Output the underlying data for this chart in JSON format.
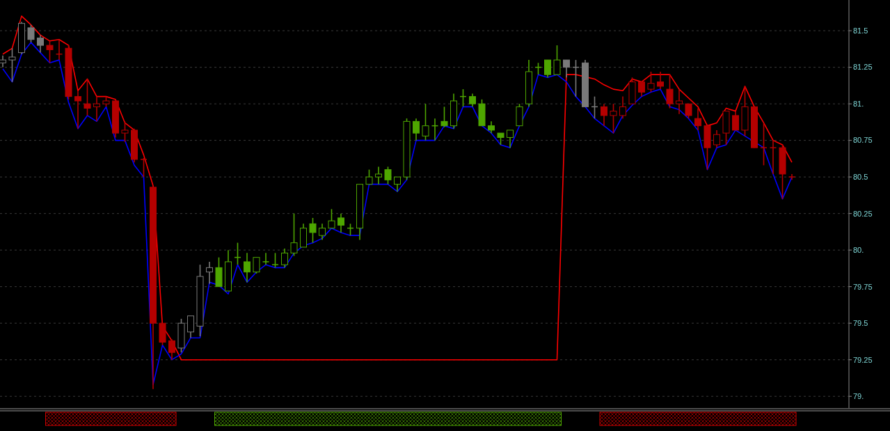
{
  "chart_data": {
    "type": "candlestick",
    "categories": [
      null,
      null,
      null,
      null,
      null,
      null,
      null,
      null,
      null,
      null,
      null,
      null,
      null,
      null,
      null,
      null,
      null,
      null,
      null,
      null,
      null,
      null,
      null,
      null,
      null,
      null,
      null,
      null,
      null,
      null,
      null,
      null,
      null,
      null,
      null,
      null,
      null,
      null,
      null,
      null,
      null,
      null,
      null,
      null,
      null,
      null,
      null,
      null,
      null,
      null,
      null,
      null,
      null,
      null,
      null,
      null,
      null,
      null,
      null,
      null,
      null,
      null,
      null,
      null,
      null,
      null,
      null,
      null,
      null,
      null,
      null,
      null,
      null,
      null,
      null,
      null,
      null,
      null,
      null,
      null,
      null,
      null,
      null,
      null,
      null
    ],
    "ohlc": [
      [
        81.28,
        81.33,
        81.25,
        81.3
      ],
      [
        81.3,
        81.38,
        81.15,
        81.32
      ],
      [
        81.35,
        81.56,
        81.34,
        81.55
      ],
      [
        81.52,
        81.54,
        81.42,
        81.44
      ],
      [
        81.45,
        81.47,
        81.35,
        81.4
      ],
      [
        81.4,
        81.43,
        81.28,
        81.37
      ],
      [
        81.34,
        81.44,
        81.3,
        81.34
      ],
      [
        81.38,
        81.4,
        81.03,
        81.05
      ],
      [
        81.05,
        81.09,
        80.83,
        81.02
      ],
      [
        81.0,
        81.17,
        80.92,
        80.97
      ],
      [
        80.98,
        81.05,
        80.88,
        81.0
      ],
      [
        81.0,
        81.05,
        80.98,
        81.02
      ],
      [
        81.02,
        81.03,
        80.77,
        80.8
      ],
      [
        80.8,
        80.88,
        80.74,
        80.82
      ],
      [
        80.82,
        80.83,
        80.6,
        80.62
      ],
      [
        80.62,
        80.63,
        80.5,
        80.62
      ],
      [
        80.43,
        80.43,
        79.05,
        79.5
      ],
      [
        79.5,
        79.5,
        79.35,
        79.37
      ],
      [
        79.38,
        79.39,
        79.25,
        79.3
      ],
      [
        79.33,
        79.53,
        79.3,
        79.5
      ],
      [
        79.44,
        79.55,
        79.4,
        79.55
      ],
      [
        79.48,
        79.9,
        79.41,
        79.82
      ],
      [
        79.85,
        79.92,
        79.77,
        79.88
      ],
      [
        79.88,
        79.95,
        79.75,
        79.75
      ],
      [
        79.72,
        80.0,
        79.72,
        79.92
      ],
      [
        79.95,
        80.05,
        79.9,
        79.95
      ],
      [
        79.92,
        79.98,
        79.78,
        79.85
      ],
      [
        79.85,
        79.95,
        79.84,
        79.95
      ],
      [
        79.92,
        79.98,
        79.9,
        79.92
      ],
      [
        79.9,
        79.98,
        79.88,
        79.9
      ],
      [
        79.9,
        80.01,
        79.88,
        79.98
      ],
      [
        79.98,
        80.25,
        79.96,
        80.05
      ],
      [
        80.02,
        80.18,
        80.02,
        80.15
      ],
      [
        80.18,
        80.22,
        80.05,
        80.12
      ],
      [
        80.1,
        80.18,
        80.07,
        80.15
      ],
      [
        80.15,
        80.28,
        80.15,
        80.2
      ],
      [
        80.22,
        80.25,
        80.12,
        80.17
      ],
      [
        80.15,
        80.18,
        80.1,
        80.15
      ],
      [
        80.15,
        80.45,
        80.07,
        80.45
      ],
      [
        80.45,
        80.55,
        80.45,
        80.5
      ],
      [
        80.5,
        80.57,
        80.45,
        80.52
      ],
      [
        80.55,
        80.57,
        80.45,
        80.48
      ],
      [
        80.45,
        80.5,
        80.4,
        80.5
      ],
      [
        80.5,
        80.9,
        80.48,
        80.88
      ],
      [
        80.88,
        80.9,
        80.75,
        80.8
      ],
      [
        80.78,
        81.0,
        80.75,
        80.85
      ],
      [
        80.85,
        80.9,
        80.75,
        80.85
      ],
      [
        80.88,
        80.98,
        80.84,
        80.85
      ],
      [
        80.85,
        81.07,
        80.83,
        81.02
      ],
      [
        81.05,
        81.1,
        80.98,
        81.05
      ],
      [
        81.05,
        81.07,
        80.98,
        81.0
      ],
      [
        81.0,
        81.03,
        80.85,
        80.85
      ],
      [
        80.85,
        80.88,
        80.8,
        80.82
      ],
      [
        80.8,
        80.8,
        80.72,
        80.77
      ],
      [
        80.77,
        80.82,
        80.7,
        80.82
      ],
      [
        80.85,
        81.0,
        80.85,
        80.98
      ],
      [
        81.0,
        81.3,
        80.98,
        81.22
      ],
      [
        81.25,
        81.28,
        81.2,
        81.25
      ],
      [
        81.3,
        81.3,
        81.18,
        81.2
      ],
      [
        81.2,
        81.4,
        81.2,
        81.3
      ],
      [
        81.3,
        81.3,
        81.18,
        81.25
      ],
      [
        81.25,
        81.3,
        81.05,
        81.25
      ],
      [
        81.28,
        81.3,
        80.98,
        80.98
      ],
      [
        80.98,
        81.05,
        80.9,
        80.98
      ],
      [
        80.98,
        81.0,
        80.85,
        80.92
      ],
      [
        80.92,
        81.0,
        80.8,
        80.95
      ],
      [
        80.92,
        81.05,
        80.9,
        80.98
      ],
      [
        81.0,
        81.18,
        81.0,
        81.15
      ],
      [
        81.15,
        81.15,
        81.05,
        81.08
      ],
      [
        81.1,
        81.22,
        81.08,
        81.14
      ],
      [
        81.15,
        81.22,
        81.1,
        81.12
      ],
      [
        81.1,
        81.2,
        80.97,
        81.0
      ],
      [
        81.0,
        81.1,
        80.93,
        81.02
      ],
      [
        81.0,
        81.0,
        80.9,
        80.92
      ],
      [
        80.9,
        80.97,
        80.82,
        80.85
      ],
      [
        80.85,
        80.85,
        80.55,
        80.7
      ],
      [
        80.72,
        80.82,
        80.7,
        80.79
      ],
      [
        80.8,
        80.95,
        80.72,
        80.95
      ],
      [
        80.92,
        80.95,
        80.82,
        80.82
      ],
      [
        80.82,
        81.12,
        80.78,
        80.98
      ],
      [
        80.98,
        80.98,
        80.7,
        80.7
      ],
      [
        80.7,
        80.87,
        80.58,
        80.7
      ],
      [
        80.7,
        80.75,
        80.52,
        80.7
      ],
      [
        80.7,
        80.72,
        80.35,
        80.52
      ],
      [
        80.5,
        80.52,
        80.48,
        80.5
      ]
    ],
    "colors": [
      "#7a7a7a",
      "#7a7a7a",
      "#7a7a7a",
      "#7a7a7a",
      "#7a7a7a",
      "#b40000",
      "#b40000",
      "#b40000",
      "#b40000",
      "#b40000",
      "#b40000",
      "#b40000",
      "#b40000",
      "#b40000",
      "#b40000",
      "#b40000",
      "#b40000",
      "#b40000",
      "#b40000",
      "#7a7a7a",
      "#7a7a7a",
      "#7a7a7a",
      "#7a7a7a",
      "#4ea600",
      "#4ea600",
      "#4ea600",
      "#4ea600",
      "#4ea600",
      "#4ea600",
      "#4ea600",
      "#4ea600",
      "#4ea600",
      "#4ea600",
      "#4ea600",
      "#4ea600",
      "#4ea600",
      "#4ea600",
      "#4ea600",
      "#4ea600",
      "#4ea600",
      "#4ea600",
      "#4ea600",
      "#4ea600",
      "#4ea600",
      "#4ea600",
      "#4ea600",
      "#4ea600",
      "#4ea600",
      "#4ea600",
      "#4ea600",
      "#4ea600",
      "#4ea600",
      "#4ea600",
      "#4ea600",
      "#4ea600",
      "#4ea600",
      "#4ea600",
      "#4ea600",
      "#4ea600",
      "#4ea600",
      "#7a7a7a",
      "#7a7a7a",
      "#7a7a7a",
      "#7a7a7a",
      "#b40000",
      "#b40000",
      "#b40000",
      "#b40000",
      "#b40000",
      "#b40000",
      "#b40000",
      "#b40000",
      "#b40000",
      "#b40000",
      "#b40000",
      "#b40000",
      "#b40000",
      "#b40000",
      "#b40000",
      "#b40000",
      "#b40000",
      "#b40000",
      "#b40000",
      "#b40000",
      "#b40000"
    ],
    "series": [
      {
        "type": "line",
        "color": "#ff0000",
        "values": [
          81.34,
          81.38,
          81.6,
          81.54,
          81.47,
          81.43,
          81.44,
          81.4,
          81.09,
          81.17,
          81.05,
          81.05,
          81.03,
          80.87,
          80.82,
          80.65,
          80.44,
          79.48,
          79.38,
          79.25,
          79.25,
          79.25,
          79.25,
          79.25,
          79.25,
          79.25,
          79.25,
          79.25,
          79.25,
          79.25,
          79.25,
          79.25,
          79.25,
          79.25,
          79.25,
          79.25,
          79.25,
          79.25,
          79.25,
          79.25,
          79.25,
          79.25,
          79.25,
          79.25,
          79.25,
          79.25,
          79.25,
          79.25,
          79.25,
          79.25,
          79.25,
          79.25,
          79.25,
          79.25,
          79.25,
          79.25,
          79.25,
          79.25,
          79.25,
          79.25,
          81.2,
          81.2,
          null,
          81.17,
          81.13,
          81.1,
          81.09,
          81.17,
          81.15,
          81.2,
          81.2,
          81.2,
          81.1,
          81.04,
          80.98,
          80.85,
          80.87,
          80.97,
          80.95,
          81.12,
          80.98,
          80.87,
          80.75,
          80.72,
          80.6
        ]
      },
      {
        "type": "line",
        "color": "#0000ff",
        "values": [
          81.24,
          81.15,
          81.34,
          81.42,
          81.35,
          81.28,
          81.3,
          81.01,
          80.83,
          80.92,
          80.88,
          80.98,
          80.75,
          80.75,
          80.58,
          80.5,
          79.08,
          79.35,
          79.25,
          79.29,
          79.4,
          79.4,
          79.78,
          79.76,
          79.7,
          79.9,
          79.78,
          79.85,
          79.9,
          79.88,
          79.88,
          79.98,
          80.03,
          80.05,
          80.08,
          80.15,
          80.12,
          80.1,
          80.1,
          80.45,
          80.45,
          80.45,
          80.4,
          80.48,
          80.75,
          80.75,
          80.75,
          80.85,
          80.83,
          80.98,
          80.98,
          80.85,
          80.8,
          80.72,
          80.7,
          80.85,
          80.98,
          81.2,
          81.18,
          81.2,
          81.15,
          81.05,
          80.98,
          80.9,
          80.85,
          80.8,
          80.92,
          80.99,
          81.05,
          81.08,
          81.1,
          80.98,
          80.96,
          80.9,
          80.82,
          80.55,
          80.7,
          80.72,
          80.82,
          80.78,
          null,
          80.7,
          80.52,
          80.35,
          80.5
        ]
      }
    ],
    "ylim": [
      78.92,
      81.71
    ],
    "yticks": [
      {
        "value": 79,
        "label": "79."
      },
      79.25,
      79.5,
      79.75,
      {
        "value": 80,
        "label": "80."
      },
      80.25,
      80.5,
      80.75,
      {
        "value": 81,
        "label": "81."
      },
      81.25,
      81.5
    ],
    "grid": "y",
    "tick_labels": "y"
  }
}
